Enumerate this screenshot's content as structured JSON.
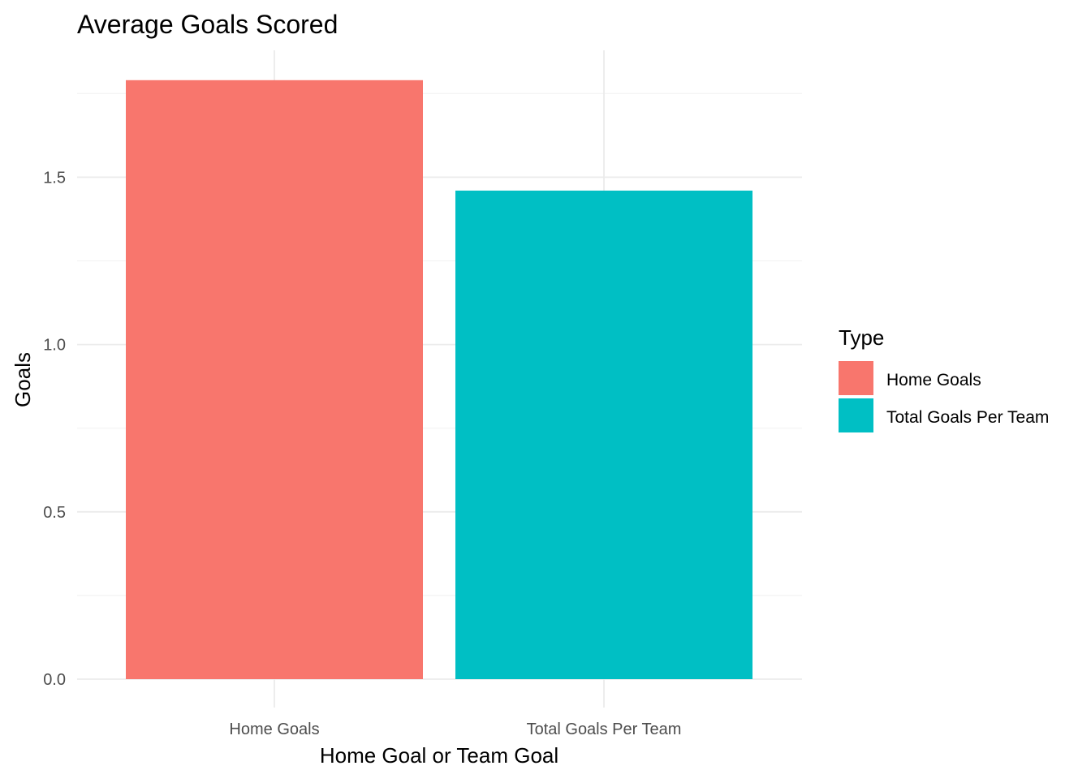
{
  "chart_data": {
    "type": "bar",
    "title": "Average Goals Scored",
    "xlabel": "Home Goal or Team Goal",
    "ylabel": "Goals",
    "categories": [
      "Home Goals",
      "Total Goals Per Team"
    ],
    "values": [
      1.79,
      1.46
    ],
    "colors": [
      "#F8766D",
      "#00BFC4"
    ],
    "ylim": [
      0,
      1.9
    ],
    "yticks": [
      0.0,
      0.5,
      1.0,
      1.5
    ],
    "ytick_labels": [
      "0.0",
      "0.5",
      "1.0",
      "1.5"
    ],
    "grid": true,
    "legend": {
      "title": "Type",
      "placement": "right",
      "entries": [
        {
          "label": "Home Goals",
          "color": "#F8766D"
        },
        {
          "label": "Total Goals Per Team",
          "color": "#00BFC4"
        }
      ]
    }
  }
}
